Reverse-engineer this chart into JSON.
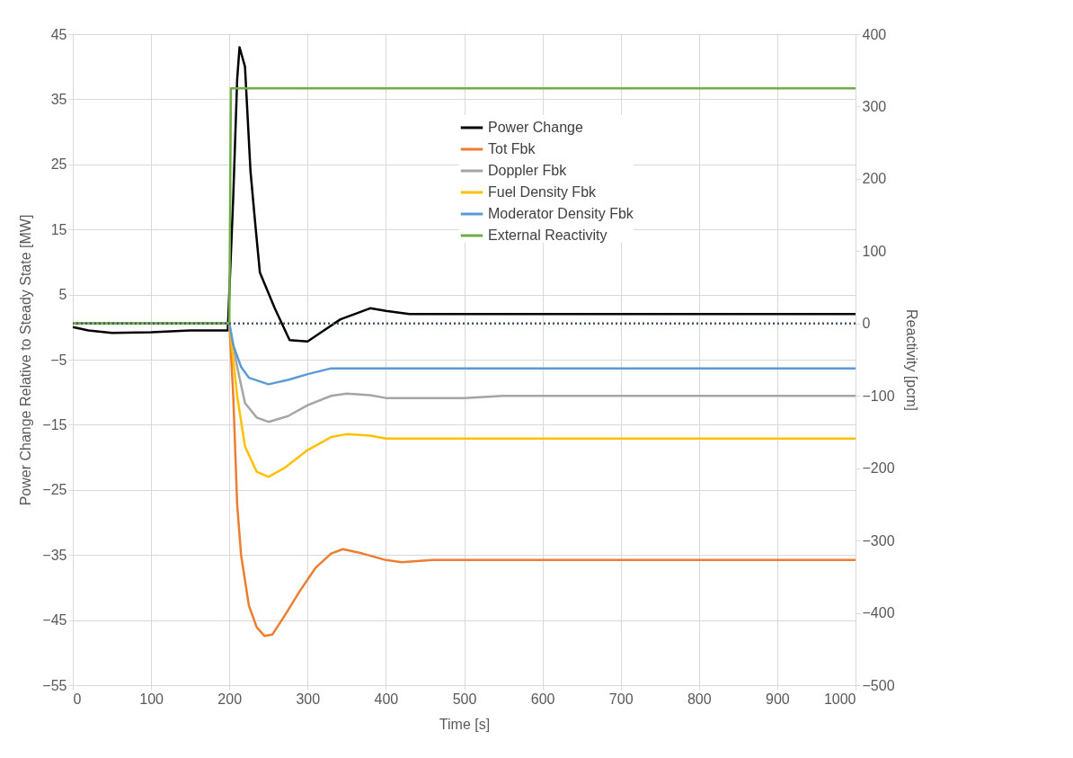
{
  "chart_data": {
    "type": "line",
    "xlabel": "Time [s]",
    "ylabel": "Power Change Relative to Steady State [MW]",
    "y2label": "Reactivity [pcm]",
    "xlim": [
      0,
      1000
    ],
    "xticks": [
      0,
      100,
      200,
      300,
      400,
      500,
      600,
      700,
      800,
      900,
      1000
    ],
    "ylim": [
      -55,
      45
    ],
    "yticks": [
      -55,
      -45,
      -35,
      -25,
      -15,
      -5,
      5,
      15,
      25,
      35,
      45
    ],
    "y2lim": [
      -500,
      400
    ],
    "y2ticks": [
      -500,
      -400,
      -300,
      -200,
      -100,
      0,
      100,
      200,
      300,
      400
    ],
    "grid": true,
    "legend": "top right",
    "ref_lines": [
      {
        "axis": "y2",
        "value": 0,
        "color": "#44546a",
        "line_style": "dotted"
      }
    ],
    "series": [
      {
        "name": "Power Change",
        "color": "#000000",
        "x": [
          0,
          20,
          50,
          100,
          150,
          198,
          205,
          210,
          213,
          220,
          227,
          233,
          239,
          258,
          277,
          300,
          311,
          342,
          380,
          400,
          430,
          1000
        ],
        "values": [
          0,
          -0.5,
          -0.9,
          -0.8,
          -0.5,
          -0.5,
          20,
          38,
          43,
          40,
          24,
          16,
          8.4,
          2.9,
          -2,
          -2.2,
          -1.3,
          1.2,
          2.9,
          2.5,
          2,
          2
        ]
      },
      {
        "name": "Tot Fbk",
        "color": "#ed7d31",
        "axis": "y2",
        "x": [
          0,
          200,
          205,
          210,
          215,
          225,
          235,
          245,
          255,
          270,
          290,
          310,
          330,
          345,
          370,
          400,
          420,
          460,
          1000
        ],
        "values": [
          0,
          0,
          -100,
          -250,
          -320,
          -390,
          -420,
          -432,
          -430,
          -405,
          -370,
          -338,
          -318,
          -312,
          -318,
          -327,
          -330,
          -327,
          -327
        ]
      },
      {
        "name": "Doppler Fbk",
        "color": "#a5a5a5",
        "axis": "y2",
        "x": [
          0,
          200,
          210,
          220,
          235,
          250,
          275,
          300,
          330,
          350,
          380,
          400,
          500,
          550,
          1000
        ],
        "values": [
          0,
          0,
          -60,
          -110,
          -130,
          -136,
          -128,
          -113,
          -100,
          -97,
          -99,
          -103,
          -103,
          -100,
          -100
        ]
      },
      {
        "name": "Fuel Density Fbk",
        "color": "#ffc000",
        "axis": "y2",
        "x": [
          0,
          200,
          210,
          220,
          235,
          250,
          270,
          300,
          330,
          350,
          380,
          400,
          1000
        ],
        "values": [
          0,
          0,
          -100,
          -170,
          -205,
          -212,
          -200,
          -175,
          -157,
          -153,
          -155,
          -159,
          -159
        ]
      },
      {
        "name": "Moderator Density Fbk",
        "color": "#5b9bd5",
        "axis": "y2",
        "x": [
          0,
          200,
          205,
          215,
          225,
          250,
          275,
          300,
          330,
          400,
          1000
        ],
        "values": [
          0,
          0,
          -30,
          -60,
          -75,
          -84,
          -78,
          -70,
          -62,
          -62,
          -62
        ]
      },
      {
        "name": "External Reactivity",
        "color": "#70ad47",
        "axis": "y2",
        "x": [
          0,
          200,
          202,
          1000
        ],
        "values": [
          0,
          0,
          325,
          325
        ]
      }
    ]
  }
}
